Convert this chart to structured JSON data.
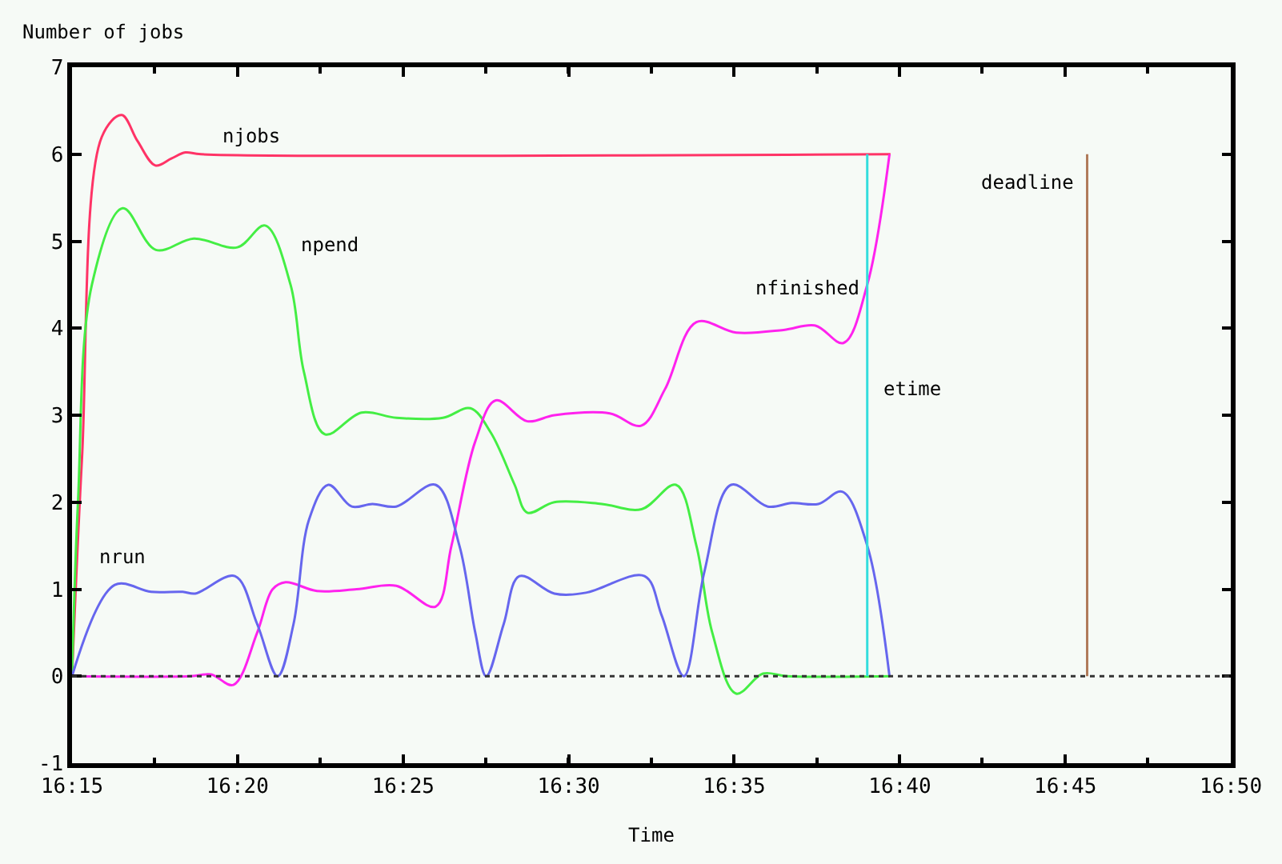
{
  "chart_data": {
    "type": "line",
    "xlabel": "Time",
    "ylabel": "Number of jobs",
    "xlim": [
      16.25,
      16.8333
    ],
    "ylim": [
      -1,
      7
    ],
    "xticks": [
      {
        "value": 16.25,
        "label": "16:15"
      },
      {
        "value": 16.3333,
        "label": "16:20"
      },
      {
        "value": 16.4167,
        "label": "16:25"
      },
      {
        "value": 16.5,
        "label": "16:30"
      },
      {
        "value": 16.5833,
        "label": "16:35"
      },
      {
        "value": 16.6667,
        "label": "16:40"
      },
      {
        "value": 16.75,
        "label": "16:45"
      },
      {
        "value": 16.8333,
        "label": "16:50"
      }
    ],
    "yticks": [
      -1,
      0,
      1,
      2,
      3,
      4,
      5,
      6,
      7
    ],
    "grid": false,
    "legend": false,
    "marker": "none",
    "line_style": "solid",
    "series": [
      {
        "name": "njobs",
        "color": "#ff3366",
        "x": [
          16.25,
          16.255,
          16.265,
          16.275,
          16.283,
          16.292,
          16.3,
          16.307,
          16.315,
          16.662
        ],
        "values": [
          0,
          2.5,
          6.2,
          6.45,
          6.15,
          5.87,
          5.95,
          6.02,
          6.0,
          6.0
        ]
      },
      {
        "name": "npend",
        "color": "#44ee44",
        "x": [
          16.25,
          16.253,
          16.26,
          16.2755,
          16.2922,
          16.3113,
          16.3333,
          16.3472,
          16.36,
          16.3667,
          16.3773,
          16.3957,
          16.4133,
          16.4367,
          16.4505,
          16.4608,
          16.4728,
          16.4792,
          16.4928,
          16.5167,
          16.5367,
          16.554,
          16.5643,
          16.5723,
          16.5843,
          16.5978,
          16.61,
          16.6617
        ],
        "values": [
          0,
          2,
          4.5,
          5.38,
          4.9,
          5.03,
          4.93,
          5.18,
          4.5,
          3.5,
          2.78,
          3.03,
          2.97,
          2.97,
          3.08,
          2.8,
          2.2,
          1.88,
          2.0,
          1.98,
          1.92,
          2.2,
          1.5,
          0.5,
          -0.2,
          0.03,
          0,
          0
        ]
      },
      {
        "name": "nfinished",
        "color": "#ff22ee",
        "x": [
          16.25,
          16.3097,
          16.32,
          16.3312,
          16.3432,
          16.351,
          16.3575,
          16.3733,
          16.3933,
          16.4132,
          16.433,
          16.441,
          16.453,
          16.4633,
          16.4792,
          16.4928,
          16.5207,
          16.5365,
          16.5485,
          16.5643,
          16.5843,
          16.6082,
          16.6242,
          16.6383,
          16.6503,
          16.6615
        ],
        "values": [
          0,
          0,
          0.02,
          -0.1,
          0.5,
          1.0,
          1.08,
          0.98,
          1.0,
          1.04,
          0.8,
          1.5,
          2.7,
          3.17,
          2.93,
          3.0,
          3.02,
          2.88,
          3.3,
          4.07,
          3.95,
          3.98,
          4.03,
          3.83,
          4.5,
          6.0
        ]
      },
      {
        "name": "nrun",
        "color": "#6666ee",
        "x": [
          16.25,
          16.2715,
          16.2898,
          16.3057,
          16.312,
          16.332,
          16.3432,
          16.3535,
          16.3615,
          16.3693,
          16.379,
          16.3908,
          16.4012,
          16.4132,
          16.433,
          16.445,
          16.453,
          16.4585,
          16.4673,
          16.4752,
          16.4928,
          16.5087,
          16.5382,
          16.5468,
          16.558,
          16.5683,
          16.5818,
          16.6002,
          16.6122,
          16.6257,
          16.6377,
          16.6503,
          16.6615
        ],
        "values": [
          0,
          1.05,
          0.97,
          0.97,
          0.95,
          1.15,
          0.6,
          0.0,
          0.6,
          1.8,
          2.2,
          1.95,
          1.98,
          1.95,
          2.2,
          1.5,
          0.5,
          0.0,
          0.6,
          1.15,
          0.95,
          0.96,
          1.15,
          0.7,
          0.0,
          1.2,
          2.2,
          1.95,
          1.99,
          1.98,
          2.12,
          1.5,
          0
        ]
      },
      {
        "name": "etime",
        "color": "#33dddd",
        "x": [
          16.6503,
          16.6503
        ],
        "values": [
          0,
          6
        ]
      },
      {
        "name": "deadline",
        "color": "#b07a5a",
        "x": [
          16.761,
          16.761
        ],
        "values": [
          0,
          6
        ]
      }
    ],
    "ref_lines": [
      {
        "axis": "y",
        "value": 0,
        "color": "#333333",
        "line_style": "dotted"
      }
    ]
  }
}
